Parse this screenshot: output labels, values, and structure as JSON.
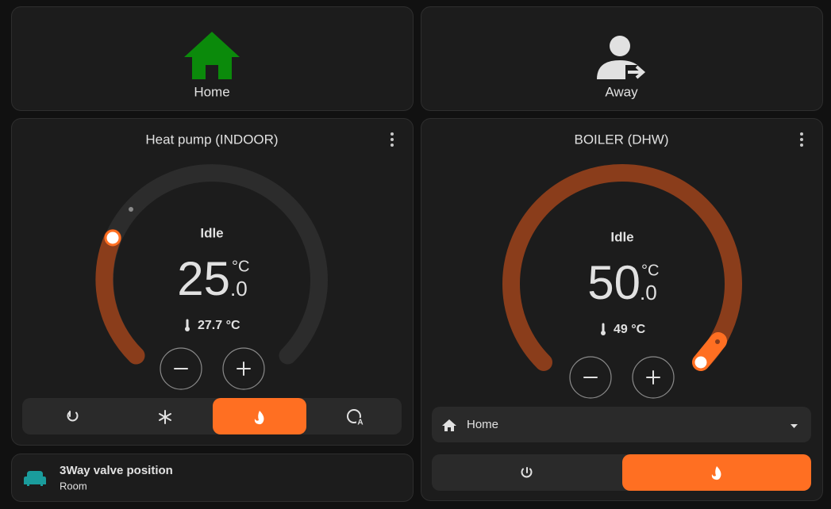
{
  "modes": [
    {
      "label": "Home"
    },
    {
      "label": "Away"
    }
  ],
  "thermostats": [
    {
      "title": "Heat pump (INDOOR)",
      "action": "Idle",
      "target_integer": "25",
      "target_decimal": ".0",
      "unit": "°C",
      "current": "27.7 °C"
    },
    {
      "title": "BOILER (DHW)",
      "action": "Idle",
      "target_integer": "50",
      "target_decimal": ".0",
      "unit": "°C",
      "current": "49 °C",
      "preset": "Home"
    }
  ],
  "entity": {
    "name": "3Way valve position",
    "state": "Room"
  }
}
